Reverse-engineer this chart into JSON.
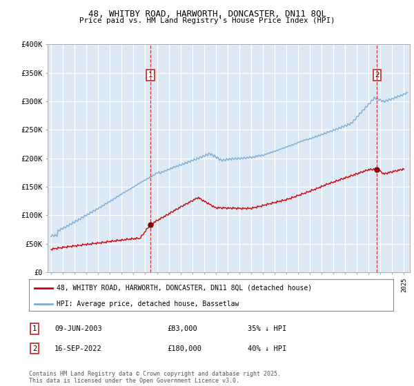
{
  "title": "48, WHITBY ROAD, HARWORTH, DONCASTER, DN11 8QL",
  "subtitle": "Price paid vs. HM Land Registry's House Price Index (HPI)",
  "bg_color": "#dce9f5",
  "red_color": "#cc0000",
  "blue_color": "#7aadd4",
  "marker1_date_x": 2003.44,
  "marker2_date_x": 2022.71,
  "annotation1": "1",
  "annotation2": "2",
  "legend_label_red": "48, WHITBY ROAD, HARWORTH, DONCASTER, DN11 8QL (detached house)",
  "legend_label_blue": "HPI: Average price, detached house, Bassetlaw",
  "note1_num": "1",
  "note1_date": "09-JUN-2003",
  "note1_price": "£83,000",
  "note1_hpi": "35% ↓ HPI",
  "note2_num": "2",
  "note2_date": "16-SEP-2022",
  "note2_price": "£180,000",
  "note2_hpi": "40% ↓ HPI",
  "footer": "Contains HM Land Registry data © Crown copyright and database right 2025.\nThis data is licensed under the Open Government Licence v3.0.",
  "ylim_min": 0,
  "ylim_max": 400000,
  "xmin": 1994.7,
  "xmax": 2025.5
}
